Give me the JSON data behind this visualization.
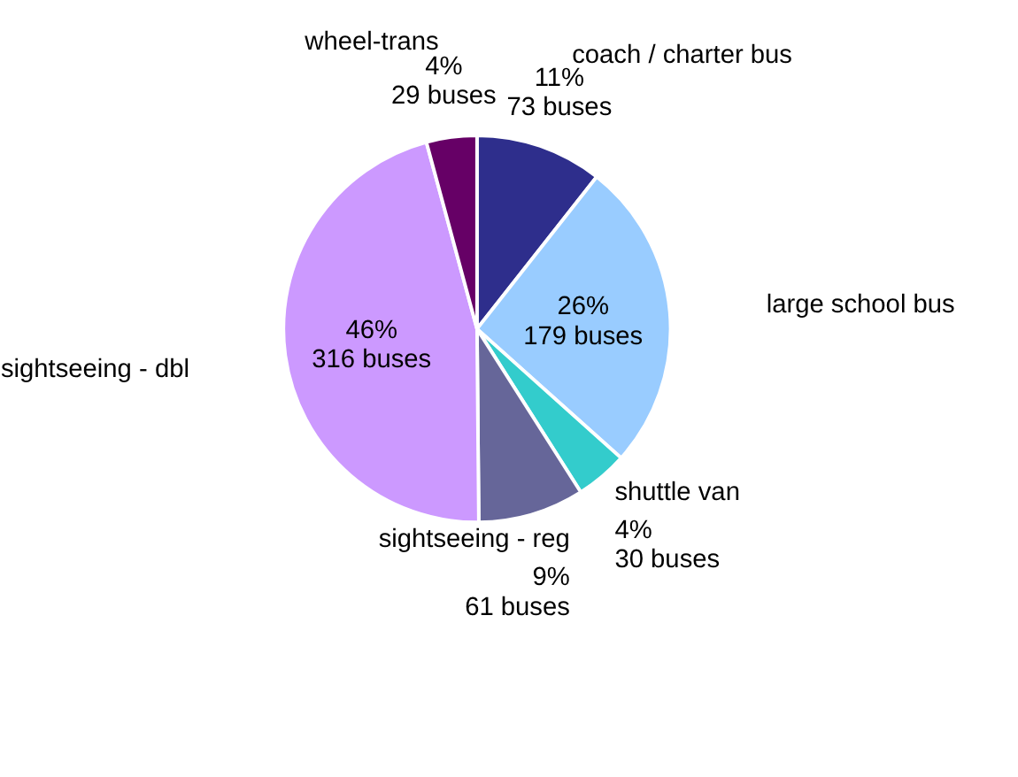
{
  "chart_data": {
    "type": "pie",
    "categories": [
      "coach / charter bus",
      "large school bus",
      "shuttle van",
      "sightseeing - reg",
      "sightseeing - dbl",
      "wheel-trans"
    ],
    "values": [
      73,
      179,
      30,
      61,
      316,
      29
    ],
    "colors": [
      "#2e2e8c",
      "#99ccff",
      "#33cccc",
      "#666699",
      "#cc99ff",
      "#660066"
    ],
    "value_labels": [
      "11%\n73 buses",
      "26%\n179 buses",
      "4%\n30 buses",
      "9%\n61 buses",
      "46%\n316 buses",
      "4%\n29 buses"
    ],
    "legend": false
  }
}
